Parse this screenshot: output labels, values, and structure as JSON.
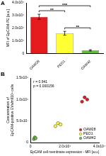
{
  "chart_data": [
    {
      "panel": "A",
      "type": "bar",
      "categories": [
        "OAW28",
        "PEO1",
        "OAW42"
      ],
      "values": [
        29000,
        16000,
        2500
      ],
      "errors": [
        2000,
        1500,
        500
      ],
      "colors": [
        "#e41a1c",
        "#ffff33",
        "#66bd3c"
      ],
      "y_label": "MFI of EpCAM-PE [a.u.]",
      "ylim": [
        0,
        40000
      ],
      "yticks": [
        0,
        {
          "value": 10000,
          "label": "1.0x10⁴"
        },
        {
          "value": 20000,
          "label": "2.0x10⁴"
        },
        {
          "value": 30000,
          "label": "3.0x10⁴"
        },
        {
          "value": 40000,
          "label": "4.0x10⁴"
        }
      ],
      "significance": [
        {
          "from": "OAW28",
          "to": "PEO1",
          "text": "**"
        },
        {
          "from": "OAW28",
          "to": "OAW42",
          "text": "***"
        },
        {
          "from": "PEO1",
          "to": "OAW42",
          "text": "**"
        }
      ],
      "grid": false
    },
    {
      "panel": "B",
      "type": "scatter",
      "x_label": "EpCAM cell membrane expression - MFI [a.u.]",
      "y_label": [
        "Concentration of",
        "EpCAM-positive EVs/ml/10⁶ cells"
      ],
      "series": [
        {
          "name": "OAW28",
          "color": "#e41a1c",
          "x": [
            30000,
            31500,
            33000
          ],
          "values": [
            95000000,
            105000000,
            100000000
          ]
        },
        {
          "name": "PEO1",
          "color": "#ffff33",
          "x": [
            14500,
            16000,
            17500
          ],
          "values": [
            38000000,
            45000000,
            42000000
          ]
        },
        {
          "name": "OAW42",
          "color": "#66bd3c",
          "x": [
            2000,
            2500,
            3000
          ],
          "values": [
            8000000,
            12000000,
            10000000
          ]
        }
      ],
      "xlim": [
        0,
        40000
      ],
      "xticks": [
        0,
        {
          "value": 20000,
          "label": "2.0x10⁴"
        },
        {
          "value": 40000,
          "label": "4.0x10⁴"
        }
      ],
      "ylim": [
        0,
        150000000
      ],
      "yticks": [
        0,
        {
          "value": 50000000,
          "label": "5.0x10⁷"
        },
        {
          "value": 100000000,
          "label": "1.0x10⁸"
        },
        {
          "value": 150000000,
          "label": "1.5x10⁸"
        }
      ],
      "annotations": [
        "r = 0.941",
        "p = 0.000156"
      ],
      "legend": "bottom-right",
      "grid": false
    }
  ]
}
